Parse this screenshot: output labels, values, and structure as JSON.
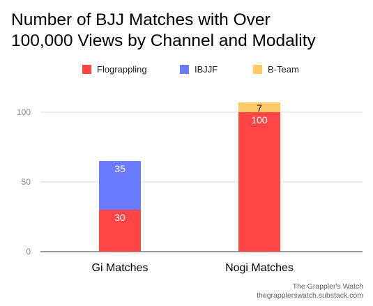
{
  "title_lines": [
    "Number of BJJ Matches with Over",
    "100,000 Views by Channel and Modality"
  ],
  "source_lines": [
    "The Grappler's Watch",
    "thegrapplerswatch.substack.com"
  ],
  "chart_data": {
    "type": "bar",
    "stacked": true,
    "title": "Number of BJJ Matches with Over 100,000 Views by Channel and Modality",
    "xlabel": "",
    "ylabel": "",
    "categories": [
      "Gi Matches",
      "Nogi Matches"
    ],
    "series": [
      {
        "name": "Flograppling",
        "values": [
          30,
          100
        ],
        "color": "#ff4545"
      },
      {
        "name": "IBJJF",
        "values": [
          35,
          0
        ],
        "color": "#6b7bff"
      },
      {
        "name": "B-Team",
        "values": [
          0,
          7
        ],
        "color": "#ffc966"
      }
    ],
    "ylim": [
      0,
      110
    ],
    "yticks": [
      0,
      50,
      100
    ],
    "grid": true,
    "legend_position": "top",
    "data_labels": true
  }
}
